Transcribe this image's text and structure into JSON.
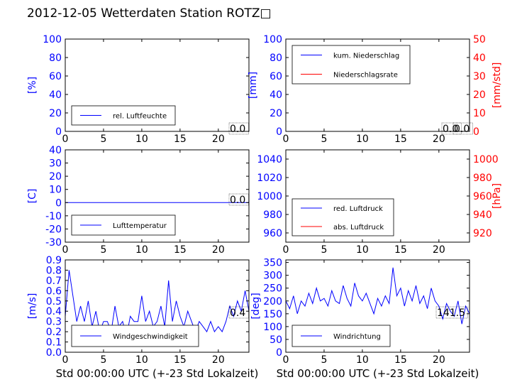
{
  "title": "2012-12-05 Wetterdaten Station ROTZ□",
  "colors": {
    "primary": "#0000ff",
    "secondary": "#ff0000",
    "frame": "#000000"
  },
  "chart_data": [
    {
      "id": "humidity",
      "type": "line",
      "ylabel": "[%]",
      "ylabel_color": "#0000ff",
      "xlim": [
        0,
        24
      ],
      "ylim": [
        0,
        100
      ],
      "xticks": [
        0,
        5,
        10,
        15,
        20
      ],
      "yticks": [
        0,
        20,
        40,
        60,
        80,
        100
      ],
      "grid": false,
      "legend_placement": "lower-left",
      "series": [
        {
          "name": "rel. Luftfeuchte",
          "color": "#0000ff",
          "axis": "left",
          "x": [
            0,
            24
          ],
          "y": [
            0,
            0
          ]
        }
      ],
      "annotations": [
        "0.0"
      ]
    },
    {
      "id": "precipitation",
      "type": "line",
      "ylabel": "[mm]",
      "ylabel_color": "#0000ff",
      "ylabel_right": "[mm/std]",
      "ylabel_right_color": "#ff0000",
      "xlim": [
        0,
        24
      ],
      "ylim": [
        0,
        100
      ],
      "ylim_right": [
        0,
        50
      ],
      "xticks": [
        0,
        5,
        10,
        15,
        20
      ],
      "yticks": [
        0,
        20,
        40,
        60,
        80,
        100
      ],
      "yticks_right": [
        0,
        10,
        20,
        30,
        40,
        50
      ],
      "grid": false,
      "legend_placement": "upper-left",
      "series": [
        {
          "name": "kum. Niederschlag",
          "color": "#0000ff",
          "axis": "left",
          "x": [
            0,
            24
          ],
          "y": [
            0,
            0
          ]
        },
        {
          "name": "Niederschlagsrate",
          "color": "#ff0000",
          "axis": "right",
          "x": [
            0,
            24
          ],
          "y": [
            0,
            0
          ]
        }
      ],
      "annotations": [
        "0.0",
        "0.0"
      ]
    },
    {
      "id": "temperature",
      "type": "line",
      "ylabel": "[C]",
      "ylabel_color": "#0000ff",
      "xlim": [
        0,
        24
      ],
      "ylim": [
        -30,
        40
      ],
      "xticks": [
        0,
        5,
        10,
        15,
        20
      ],
      "yticks": [
        -30,
        -20,
        -10,
        0,
        10,
        20,
        30,
        40
      ],
      "grid": false,
      "legend_placement": "lower-left",
      "series": [
        {
          "name": "Lufttemperatur",
          "color": "#0000ff",
          "axis": "left",
          "x": [
            0,
            24
          ],
          "y": [
            0,
            0
          ]
        }
      ],
      "annotations": [
        "0.0"
      ]
    },
    {
      "id": "pressure",
      "type": "line",
      "ylabel_right": "[hPa]",
      "ylabel_right_color": "#ff0000",
      "xlim": [
        0,
        24
      ],
      "ylim": [
        950,
        1050
      ],
      "ylim_right": [
        910,
        1010
      ],
      "xticks": [
        0,
        5,
        10,
        15,
        20
      ],
      "yticks": [
        960,
        980,
        1000,
        1020,
        1040
      ],
      "yticks_right": [
        920,
        940,
        960,
        980,
        1000
      ],
      "grid": false,
      "legend_placement": "lower-left",
      "series": [
        {
          "name": "red. Luftdruck",
          "color": "#0000ff",
          "axis": "left",
          "x": [],
          "y": []
        },
        {
          "name": "abs. Luftdruck",
          "color": "#ff0000",
          "axis": "right",
          "x": [],
          "y": []
        }
      ],
      "annotations": []
    },
    {
      "id": "windspeed",
      "type": "line",
      "ylabel": "[m/s]",
      "ylabel_color": "#0000ff",
      "xlabel": "Std 00:00:00 UTC (+-23 Std Lokalzeit)",
      "xlim": [
        0,
        24
      ],
      "ylim": [
        0,
        0.9
      ],
      "xticks": [
        0,
        5,
        10,
        15,
        20
      ],
      "yticks": [
        0.0,
        0.1,
        0.2,
        0.3,
        0.4,
        0.5,
        0.6,
        0.7,
        0.8,
        0.9
      ],
      "grid": false,
      "legend_placement": "lower-center",
      "series": [
        {
          "name": "Windgeschwindigkeit",
          "color": "#0000ff",
          "axis": "left",
          "x": [
            0,
            0.5,
            1,
            1.5,
            2,
            2.5,
            3,
            3.5,
            4,
            4.5,
            5,
            5.5,
            6,
            6.5,
            7,
            7.5,
            8,
            8.5,
            9,
            9.5,
            10,
            10.5,
            11,
            11.5,
            12,
            12.5,
            13,
            13.5,
            14,
            14.5,
            15,
            15.5,
            16,
            16.5,
            17,
            17.5,
            18,
            18.5,
            19,
            19.5,
            20,
            20.5,
            21,
            21.5,
            22,
            22.5,
            23,
            23.5,
            24
          ],
          "y": [
            0.35,
            0.8,
            0.55,
            0.3,
            0.45,
            0.3,
            0.5,
            0.25,
            0.4,
            0.2,
            0.3,
            0.3,
            0.2,
            0.45,
            0.25,
            0.3,
            0.15,
            0.35,
            0.3,
            0.3,
            0.55,
            0.3,
            0.4,
            0.25,
            0.3,
            0.45,
            0.25,
            0.7,
            0.3,
            0.5,
            0.35,
            0.25,
            0.4,
            0.3,
            0.2,
            0.3,
            0.25,
            0.2,
            0.3,
            0.2,
            0.25,
            0.2,
            0.3,
            0.45,
            0.35,
            0.5,
            0.4,
            0.6,
            0.4
          ]
        }
      ],
      "annotations": [
        "0.4"
      ]
    },
    {
      "id": "winddirection",
      "type": "line",
      "ylabel": "[deg]",
      "ylabel_color": "#0000ff",
      "xlabel": "Std 00:00:00 UTC (+-23 Std Lokalzeit)",
      "xlim": [
        0,
        24
      ],
      "ylim": [
        0,
        360
      ],
      "xticks": [
        0,
        5,
        10,
        15,
        20
      ],
      "yticks": [
        0,
        50,
        100,
        150,
        200,
        250,
        300,
        350
      ],
      "grid": false,
      "legend_placement": "lower-left",
      "series": [
        {
          "name": "Windrichtung",
          "color": "#0000ff",
          "axis": "left",
          "x": [
            0,
            0.5,
            1,
            1.5,
            2,
            2.5,
            3,
            3.5,
            4,
            4.5,
            5,
            5.5,
            6,
            6.5,
            7,
            7.5,
            8,
            8.5,
            9,
            9.5,
            10,
            10.5,
            11,
            11.5,
            12,
            12.5,
            13,
            13.5,
            14,
            14.5,
            15,
            15.5,
            16,
            16.5,
            17,
            17.5,
            18,
            18.5,
            19,
            19.5,
            20,
            20.5,
            21,
            21.5,
            22,
            22.5,
            23,
            23.5,
            24
          ],
          "y": [
            200,
            170,
            220,
            150,
            200,
            180,
            230,
            190,
            250,
            200,
            210,
            180,
            240,
            200,
            190,
            260,
            210,
            180,
            270,
            220,
            200,
            230,
            190,
            150,
            210,
            180,
            220,
            190,
            330,
            220,
            250,
            180,
            240,
            200,
            260,
            190,
            220,
            170,
            250,
            200,
            180,
            130,
            190,
            160,
            140,
            200,
            110,
            180,
            150
          ]
        }
      ],
      "annotations": [
        "141.5"
      ]
    }
  ]
}
